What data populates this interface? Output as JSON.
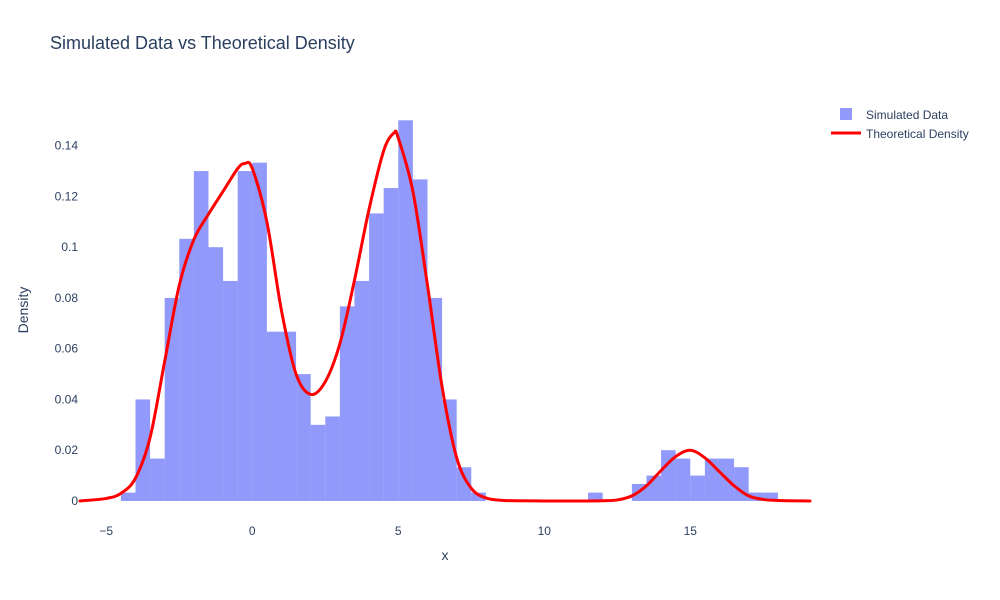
{
  "chart_data": {
    "type": "histogram_with_line",
    "title": "Simulated Data vs Theoretical Density",
    "xlabel": "x",
    "ylabel": "Density",
    "xlim": [
      -5.9,
      19.1
    ],
    "ylim": [
      -0.0075,
      0.158
    ],
    "x_ticks": [
      -5,
      0,
      5,
      10,
      15
    ],
    "x_tick_labels": [
      "−5",
      "0",
      "5",
      "10",
      "15"
    ],
    "y_ticks": [
      0,
      0.02,
      0.04,
      0.06,
      0.08,
      0.1,
      0.12,
      0.14
    ],
    "y_tick_labels": [
      "0",
      "0.02",
      "0.04",
      "0.06",
      "0.08",
      "0.1",
      "0.12",
      "0.14"
    ],
    "grid": false,
    "legend_position": "top-right",
    "series": [
      {
        "name": "Simulated Data",
        "kind": "histogram",
        "color": "#636efa",
        "opacity": 0.7,
        "bin_width": 0.5,
        "bins": [
          {
            "x0": -4.5,
            "x1": -4.0,
            "y": 0.0033
          },
          {
            "x0": -4.0,
            "x1": -3.5,
            "y": 0.04
          },
          {
            "x0": -3.5,
            "x1": -3.0,
            "y": 0.0167
          },
          {
            "x0": -3.0,
            "x1": -2.5,
            "y": 0.08
          },
          {
            "x0": -2.5,
            "x1": -2.0,
            "y": 0.1033
          },
          {
            "x0": -2.0,
            "x1": -1.5,
            "y": 0.13
          },
          {
            "x0": -1.5,
            "x1": -1.0,
            "y": 0.1
          },
          {
            "x0": -1.0,
            "x1": -0.5,
            "y": 0.0867
          },
          {
            "x0": -0.5,
            "x1": 0.0,
            "y": 0.13
          },
          {
            "x0": 0.0,
            "x1": 0.5,
            "y": 0.1333
          },
          {
            "x0": 0.5,
            "x1": 1.0,
            "y": 0.0667
          },
          {
            "x0": 1.0,
            "x1": 1.5,
            "y": 0.0667
          },
          {
            "x0": 1.5,
            "x1": 2.0,
            "y": 0.05
          },
          {
            "x0": 2.0,
            "x1": 2.5,
            "y": 0.03
          },
          {
            "x0": 2.5,
            "x1": 3.0,
            "y": 0.0333
          },
          {
            "x0": 3.0,
            "x1": 3.5,
            "y": 0.0767
          },
          {
            "x0": 3.5,
            "x1": 4.0,
            "y": 0.0867
          },
          {
            "x0": 4.0,
            "x1": 4.5,
            "y": 0.1133
          },
          {
            "x0": 4.5,
            "x1": 5.0,
            "y": 0.1233
          },
          {
            "x0": 5.0,
            "x1": 5.5,
            "y": 0.15
          },
          {
            "x0": 5.5,
            "x1": 6.0,
            "y": 0.1267
          },
          {
            "x0": 6.0,
            "x1": 6.5,
            "y": 0.08
          },
          {
            "x0": 6.5,
            "x1": 7.0,
            "y": 0.04
          },
          {
            "x0": 7.0,
            "x1": 7.5,
            "y": 0.0133
          },
          {
            "x0": 7.5,
            "x1": 8.0,
            "y": 0.0033
          },
          {
            "x0": 11.5,
            "x1": 12.0,
            "y": 0.0033
          },
          {
            "x0": 13.0,
            "x1": 13.5,
            "y": 0.0067
          },
          {
            "x0": 13.5,
            "x1": 14.0,
            "y": 0.01
          },
          {
            "x0": 14.0,
            "x1": 14.5,
            "y": 0.02
          },
          {
            "x0": 14.5,
            "x1": 15.0,
            "y": 0.0167
          },
          {
            "x0": 15.0,
            "x1": 15.5,
            "y": 0.01
          },
          {
            "x0": 15.5,
            "x1": 16.0,
            "y": 0.0167
          },
          {
            "x0": 16.0,
            "x1": 16.5,
            "y": 0.0167
          },
          {
            "x0": 16.5,
            "x1": 17.0,
            "y": 0.0133
          },
          {
            "x0": 17.0,
            "x1": 17.5,
            "y": 0.0033
          },
          {
            "x0": 17.5,
            "x1": 18.0,
            "y": 0.0033
          }
        ]
      },
      {
        "name": "Theoretical Density",
        "kind": "line",
        "color": "#ff0000",
        "x": [
          -5.9,
          -5.0,
          -4.5,
          -4.0,
          -3.5,
          -3.0,
          -2.5,
          -2.0,
          -1.5,
          -1.0,
          -0.5,
          -0.25,
          0.0,
          0.5,
          1.0,
          1.5,
          2.0,
          2.5,
          3.0,
          3.5,
          4.0,
          4.5,
          4.85,
          5.0,
          5.5,
          6.0,
          6.5,
          7.0,
          7.5,
          8.0,
          8.5,
          9.0,
          10.0,
          11.0,
          12.0,
          12.5,
          13.0,
          13.5,
          14.0,
          14.5,
          15.0,
          15.5,
          16.0,
          16.5,
          17.0,
          17.5,
          18.0,
          19.1
        ],
        "y": [
          0.0,
          0.001,
          0.003,
          0.009,
          0.025,
          0.055,
          0.085,
          0.103,
          0.113,
          0.122,
          0.131,
          0.133,
          0.131,
          0.11,
          0.075,
          0.05,
          0.042,
          0.047,
          0.062,
          0.087,
          0.115,
          0.138,
          0.145,
          0.143,
          0.122,
          0.085,
          0.045,
          0.017,
          0.005,
          0.0012,
          0.0003,
          0.0001,
          0.0,
          0.0,
          0.0001,
          0.0004,
          0.002,
          0.006,
          0.012,
          0.0175,
          0.02,
          0.017,
          0.0115,
          0.006,
          0.002,
          0.0006,
          0.0002,
          0.0
        ]
      }
    ]
  }
}
